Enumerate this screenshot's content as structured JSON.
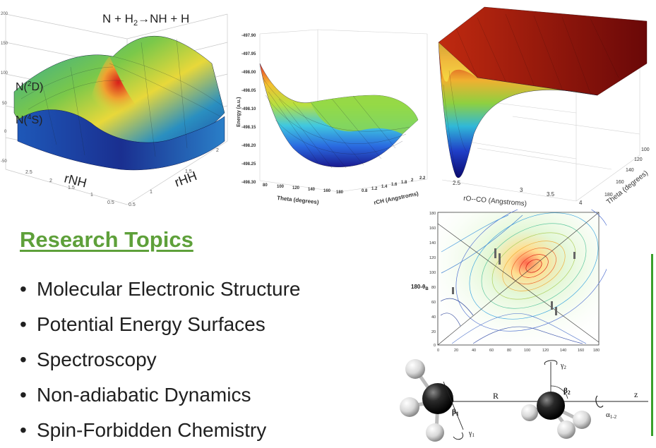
{
  "fig1": {
    "equation": {
      "lhs": "N + H",
      "sub": "2",
      "arrow": "→",
      "rhs": "NH + H"
    },
    "state_upper": {
      "pre": "N(",
      "sup": "2",
      "post": "D)"
    },
    "state_lower": {
      "pre": "N(",
      "sup": "4",
      "post": "S)"
    },
    "axis_left": "rNH",
    "axis_right": "rHH",
    "z_ticks": [
      "200",
      "150",
      "100",
      "50",
      "0",
      "-50"
    ],
    "left_ticks": [
      "2.5",
      "2",
      "1.5",
      "1",
      "0.5"
    ],
    "right_ticks": [
      "0.5",
      "1",
      "1.5",
      "2"
    ]
  },
  "fig2": {
    "ylabel": "Energy (a.u.)",
    "y_ticks": [
      "-497.90",
      "-497.95",
      "-498.00",
      "-498.05",
      "-498.10",
      "-498.15",
      "-498.20",
      "-498.25",
      "-498.30"
    ],
    "x_ticks": [
      "80",
      "100",
      "120",
      "140",
      "160",
      "180"
    ],
    "xlabel": "Theta (degrees)",
    "r_ticks": [
      "0.8",
      "1.2",
      "1.4",
      "1.6",
      "1.8",
      "2",
      "2.2"
    ],
    "rlabel": "rCH (Angstroms)"
  },
  "fig3": {
    "xlabel": "rO--CO (Angstroms)",
    "x_ticks": [
      "2.5",
      "3",
      "3.5",
      "4"
    ],
    "tlabel": "Theta (degrees)",
    "t_ticks": [
      "100",
      "120",
      "140",
      "160",
      "180"
    ]
  },
  "fig4": {
    "ylabel": {
      "pre": "180-θ",
      "sub": "B"
    },
    "y_ticks": [
      "180",
      "160",
      "140",
      "120",
      "100",
      "80",
      "60",
      "40",
      "20",
      "0"
    ],
    "x_ticks": [
      "0",
      "20",
      "40",
      "60",
      "80",
      "100",
      "120",
      "140",
      "160",
      "180"
    ]
  },
  "fig5": {
    "beta1": {
      "sym": "β",
      "sub": "1"
    },
    "beta2": {
      "sym": "β",
      "sub": "2"
    },
    "gamma1": {
      "sym": "γ",
      "sub": "1"
    },
    "gamma2": {
      "sym": "γ",
      "sub": "2"
    },
    "R": "R",
    "z": "z",
    "alpha": {
      "sym": "α",
      "sub": "1-2"
    }
  },
  "heading": "Research Topics",
  "topics": [
    "Molecular Electronic Structure",
    "Potential Energy Surfaces",
    "Spectroscopy",
    "Non-adiabatic Dynamics",
    "Spin-Forbidden Chemistry"
  ],
  "colors": {
    "heading": "#5ea03a",
    "text": "#202020",
    "accent_bar": "#3aa02a"
  }
}
